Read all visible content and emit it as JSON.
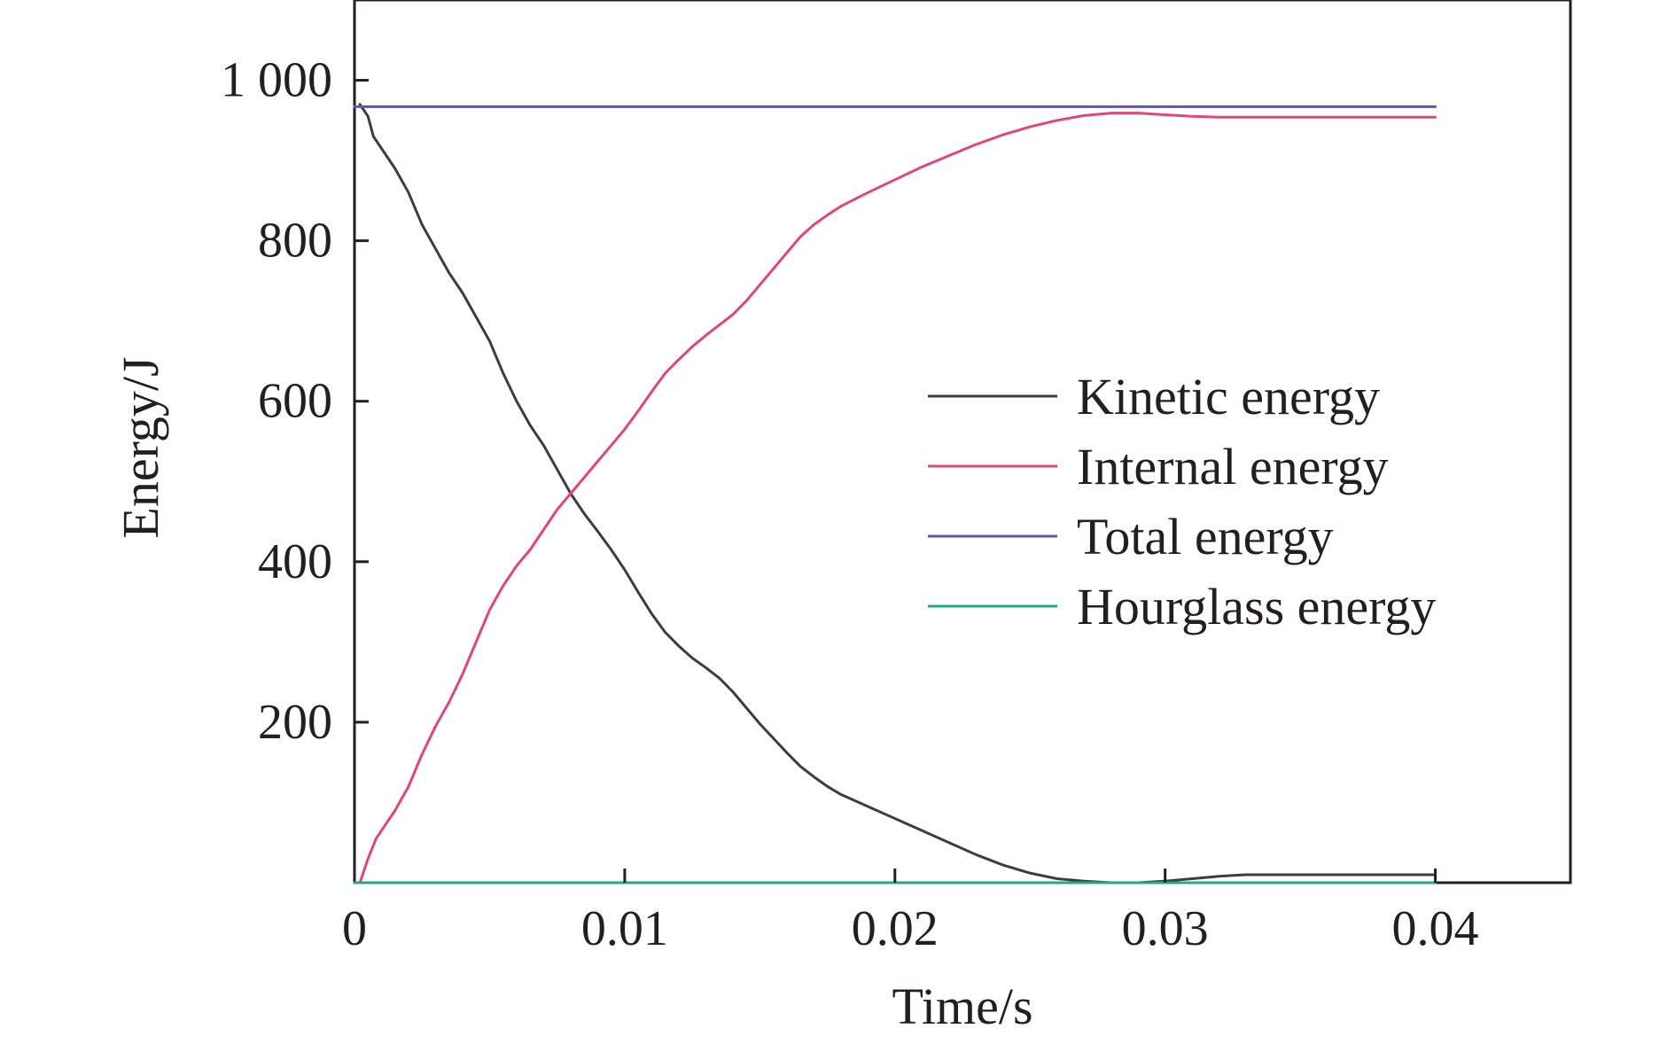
{
  "chart_data": {
    "type": "line",
    "title": "",
    "xlabel": "Time/s",
    "ylabel": "Energy/J",
    "xlim": [
      0,
      0.045
    ],
    "ylim": [
      0,
      1100
    ],
    "grid": false,
    "legend_position": "center-right",
    "x_ticks": [
      {
        "value": 0,
        "label": "0"
      },
      {
        "value": 0.01,
        "label": "0.01"
      },
      {
        "value": 0.02,
        "label": "0.02"
      },
      {
        "value": 0.03,
        "label": "0.03"
      },
      {
        "value": 0.04,
        "label": "0.04"
      }
    ],
    "y_ticks": [
      {
        "value": 200,
        "label": "200"
      },
      {
        "value": 400,
        "label": "400"
      },
      {
        "value": 600,
        "label": "600"
      },
      {
        "value": 800,
        "label": "800"
      },
      {
        "value": 1000,
        "label": "1 000"
      }
    ],
    "series": [
      {
        "name": "Kinetic energy",
        "color": "#3d3d3d",
        "points": [
          [
            0.0002,
            970
          ],
          [
            0.0005,
            955
          ],
          [
            0.0007,
            930
          ],
          [
            0.001,
            915
          ],
          [
            0.0015,
            890
          ],
          [
            0.002,
            860
          ],
          [
            0.0025,
            820
          ],
          [
            0.003,
            790
          ],
          [
            0.0035,
            760
          ],
          [
            0.004,
            735
          ],
          [
            0.0045,
            705
          ],
          [
            0.005,
            675
          ],
          [
            0.0055,
            635
          ],
          [
            0.006,
            600
          ],
          [
            0.0065,
            570
          ],
          [
            0.007,
            545
          ],
          [
            0.0075,
            515
          ],
          [
            0.008,
            485
          ],
          [
            0.0085,
            460
          ],
          [
            0.009,
            438
          ],
          [
            0.0095,
            415
          ],
          [
            0.01,
            390
          ],
          [
            0.0105,
            362
          ],
          [
            0.011,
            335
          ],
          [
            0.0115,
            312
          ],
          [
            0.012,
            295
          ],
          [
            0.0125,
            280
          ],
          [
            0.013,
            268
          ],
          [
            0.0135,
            255
          ],
          [
            0.014,
            238
          ],
          [
            0.0145,
            218
          ],
          [
            0.015,
            198
          ],
          [
            0.0155,
            180
          ],
          [
            0.016,
            162
          ],
          [
            0.0165,
            145
          ],
          [
            0.017,
            132
          ],
          [
            0.0175,
            120
          ],
          [
            0.018,
            110
          ],
          [
            0.019,
            95
          ],
          [
            0.02,
            80
          ],
          [
            0.021,
            65
          ],
          [
            0.022,
            50
          ],
          [
            0.023,
            35
          ],
          [
            0.024,
            22
          ],
          [
            0.025,
            12
          ],
          [
            0.026,
            5
          ],
          [
            0.027,
            2
          ],
          [
            0.028,
            0
          ],
          [
            0.029,
            0
          ],
          [
            0.03,
            2
          ],
          [
            0.031,
            5
          ],
          [
            0.032,
            8
          ],
          [
            0.033,
            10
          ],
          [
            0.034,
            10
          ],
          [
            0.035,
            10
          ],
          [
            0.036,
            10
          ],
          [
            0.037,
            10
          ],
          [
            0.038,
            10
          ],
          [
            0.039,
            10
          ],
          [
            0.04,
            10
          ]
        ]
      },
      {
        "name": "Internal energy",
        "color": "#e0457b",
        "points": [
          [
            0.0002,
            0
          ],
          [
            0.0005,
            30
          ],
          [
            0.0008,
            55
          ],
          [
            0.001,
            65
          ],
          [
            0.0015,
            90
          ],
          [
            0.002,
            120
          ],
          [
            0.0025,
            160
          ],
          [
            0.003,
            195
          ],
          [
            0.0035,
            225
          ],
          [
            0.004,
            260
          ],
          [
            0.0045,
            300
          ],
          [
            0.005,
            340
          ],
          [
            0.0055,
            370
          ],
          [
            0.006,
            395
          ],
          [
            0.0065,
            415
          ],
          [
            0.007,
            440
          ],
          [
            0.0075,
            465
          ],
          [
            0.008,
            485
          ],
          [
            0.0085,
            505
          ],
          [
            0.009,
            525
          ],
          [
            0.0095,
            545
          ],
          [
            0.01,
            565
          ],
          [
            0.0105,
            588
          ],
          [
            0.011,
            612
          ],
          [
            0.0115,
            635
          ],
          [
            0.012,
            652
          ],
          [
            0.0125,
            668
          ],
          [
            0.013,
            682
          ],
          [
            0.0135,
            695
          ],
          [
            0.014,
            708
          ],
          [
            0.0145,
            725
          ],
          [
            0.015,
            745
          ],
          [
            0.0155,
            765
          ],
          [
            0.016,
            785
          ],
          [
            0.0165,
            805
          ],
          [
            0.017,
            820
          ],
          [
            0.0175,
            832
          ],
          [
            0.018,
            843
          ],
          [
            0.019,
            860
          ],
          [
            0.02,
            876
          ],
          [
            0.021,
            892
          ],
          [
            0.022,
            906
          ],
          [
            0.023,
            920
          ],
          [
            0.024,
            932
          ],
          [
            0.025,
            942
          ],
          [
            0.026,
            950
          ],
          [
            0.027,
            956
          ],
          [
            0.028,
            959
          ],
          [
            0.029,
            959
          ],
          [
            0.03,
            957
          ],
          [
            0.031,
            955
          ],
          [
            0.032,
            954
          ],
          [
            0.033,
            954
          ],
          [
            0.034,
            954
          ],
          [
            0.035,
            954
          ],
          [
            0.036,
            954
          ],
          [
            0.037,
            954
          ],
          [
            0.038,
            954
          ],
          [
            0.039,
            954
          ],
          [
            0.04,
            954
          ]
        ]
      },
      {
        "name": "Total energy",
        "color": "#5b55b5",
        "points": [
          [
            0,
            967
          ],
          [
            0.01,
            967
          ],
          [
            0.02,
            967
          ],
          [
            0.03,
            967
          ],
          [
            0.04,
            967
          ]
        ]
      },
      {
        "name": "Hourglass energy",
        "color": "#22a884",
        "points": [
          [
            0,
            0
          ],
          [
            0.01,
            0
          ],
          [
            0.02,
            0
          ],
          [
            0.03,
            0
          ],
          [
            0.04,
            0
          ]
        ]
      }
    ]
  }
}
